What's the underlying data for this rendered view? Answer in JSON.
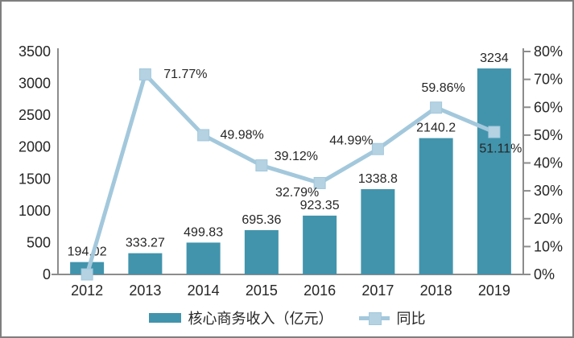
{
  "chart_data": {
    "type": "combo-bar-line",
    "title": "",
    "categories": [
      "2012",
      "2013",
      "2014",
      "2015",
      "2016",
      "2017",
      "2018",
      "2019"
    ],
    "series": [
      {
        "name": "核心商务收入（亿元）",
        "chart_type": "bar",
        "axis": "left",
        "color": "#4294ac",
        "values": [
          194.02,
          333.27,
          499.83,
          695.36,
          923.35,
          1338.8,
          2140.2,
          3234
        ],
        "labels": [
          "194.02",
          "333.27",
          "499.83",
          "695.36",
          "923.35",
          "1338.8",
          "2140.2",
          "3234"
        ]
      },
      {
        "name": "同比",
        "chart_type": "line",
        "axis": "right",
        "color": "#a3c8dc",
        "marker_color": "#b4d2e2",
        "values": [
          0,
          71.77,
          49.98,
          39.12,
          32.79,
          44.99,
          59.86,
          51.11
        ],
        "labels": [
          "",
          "71.77%",
          "49.98%",
          "39.12%",
          "32.79%",
          "44.99%",
          "59.86%",
          "51.11%"
        ]
      }
    ],
    "left_axis": {
      "min": 0,
      "max": 3500,
      "step": 500,
      "tick_labels": [
        "0",
        "500",
        "1000",
        "1500",
        "2000",
        "2500",
        "3000",
        "3500"
      ]
    },
    "right_axis": {
      "min": 0,
      "max": 80,
      "step": 10,
      "tick_labels": [
        "0%",
        "10%",
        "20%",
        "30%",
        "40%",
        "50%",
        "60%",
        "70%",
        "80%"
      ]
    },
    "legend": [
      {
        "label": "核心商务收入（亿元）",
        "swatch": "bar"
      },
      {
        "label": "同比",
        "swatch": "line-marker"
      }
    ],
    "grid": false,
    "legend_position": "bottom",
    "styles": {
      "axis_color": "#8c8c8c",
      "text_color": "#262626",
      "background": "#ffffff",
      "frame_border": "#7f7f7f"
    }
  }
}
